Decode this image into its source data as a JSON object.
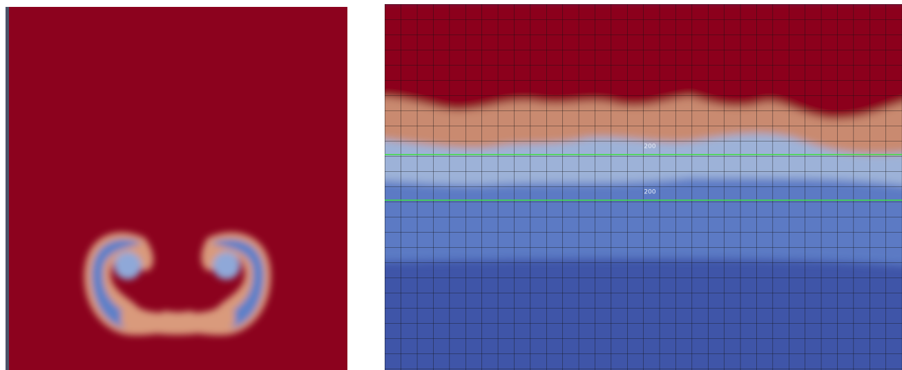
{
  "right_panel": {
    "contour_labels": [
      "200",
      "200"
    ]
  }
}
